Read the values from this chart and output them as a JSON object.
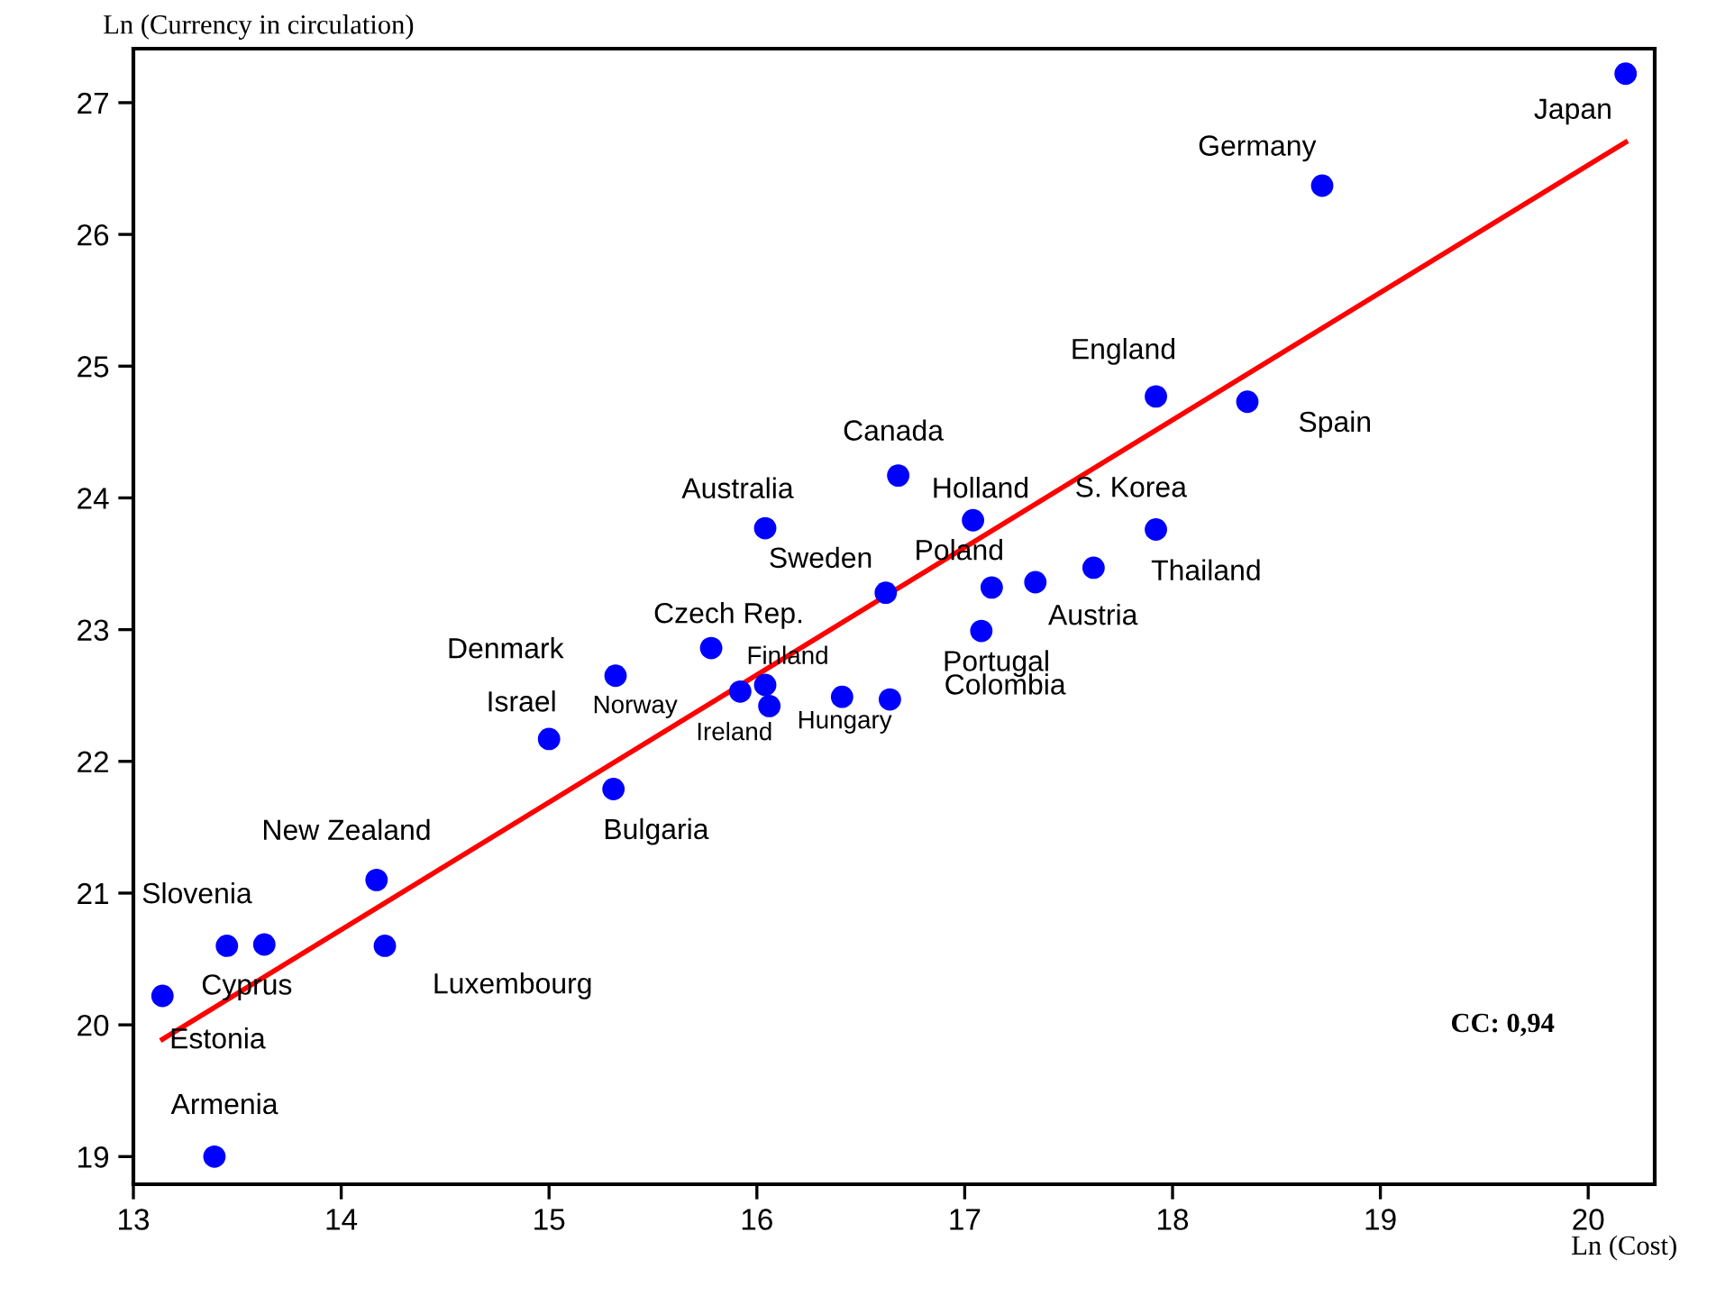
{
  "chart_data": {
    "type": "scatter",
    "xlabel": "Ln (Cost)",
    "ylabel": "Ln (Currency in circulation)",
    "xlim": [
      13,
      20.32
    ],
    "ylim": [
      18.79,
      27.41
    ],
    "xticks": [
      13,
      14,
      15,
      16,
      17,
      18,
      19,
      20
    ],
    "yticks": [
      19,
      20,
      21,
      22,
      23,
      24,
      25,
      26,
      27
    ],
    "grid": false,
    "series": [
      {
        "color": "#0000ff",
        "marker": "circle",
        "x": [
          20.18,
          18.72,
          17.92,
          18.36,
          17.92,
          17.62,
          17.34,
          17.13,
          17.04,
          16.68,
          16.04,
          16.62,
          17.08,
          15.78,
          15.32,
          16.04,
          15.92,
          16.06,
          16.41,
          16.64,
          15.0,
          15.31,
          14.17,
          13.45,
          13.63,
          14.21,
          13.14,
          13.39
        ],
        "values": [
          27.22,
          26.37,
          24.77,
          24.73,
          23.76,
          23.47,
          23.36,
          23.32,
          23.83,
          24.17,
          23.77,
          23.28,
          22.99,
          22.86,
          22.65,
          22.58,
          22.53,
          22.42,
          22.49,
          22.47,
          22.17,
          21.79,
          21.1,
          20.6,
          20.61,
          20.6,
          20.22,
          19.0
        ]
      },
      {
        "type": "line",
        "color": "#ff0000",
        "line_style": "solid",
        "marker": "none",
        "x": [
          13.14,
          20.18
        ],
        "values": [
          19.89,
          26.7
        ]
      }
    ],
    "annotations": [
      {
        "text": "Japan",
        "x": 20.18,
        "y": 27.22
      },
      {
        "text": "Germany",
        "x": 18.72,
        "y": 26.37
      },
      {
        "text": "England",
        "x": 17.92,
        "y": 24.77
      },
      {
        "text": "Spain",
        "x": 18.36,
        "y": 24.73
      },
      {
        "text": "S. Korea",
        "x": 17.92,
        "y": 23.76
      },
      {
        "text": "Thailand",
        "x": 17.62,
        "y": 23.47
      },
      {
        "text": "Austria",
        "x": 17.34,
        "y": 23.36
      },
      {
        "text": "Poland",
        "x": 17.13,
        "y": 23.32
      },
      {
        "text": "Holland",
        "x": 17.04,
        "y": 23.83
      },
      {
        "text": "Canada",
        "x": 16.68,
        "y": 24.17
      },
      {
        "text": "Australia",
        "x": 16.04,
        "y": 23.77
      },
      {
        "text": "Sweden",
        "x": 16.62,
        "y": 23.28
      },
      {
        "text": "Portugal",
        "x": 17.08,
        "y": 22.99
      },
      {
        "text": "Czech Rep.",
        "x": 15.78,
        "y": 22.86
      },
      {
        "text": "Denmark",
        "x": 15.32,
        "y": 22.65
      },
      {
        "text": "Finland",
        "x": 16.04,
        "y": 22.58
      },
      {
        "text": "Norway",
        "x": 15.92,
        "y": 22.53
      },
      {
        "text": "Ireland",
        "x": 16.06,
        "y": 22.42
      },
      {
        "text": "Hungary",
        "x": 16.41,
        "y": 22.49
      },
      {
        "text": "Colombia",
        "x": 16.64,
        "y": 22.47
      },
      {
        "text": "Israel",
        "x": 15.0,
        "y": 22.17
      },
      {
        "text": "Bulgaria",
        "x": 15.31,
        "y": 21.79
      },
      {
        "text": "New Zealand",
        "x": 14.17,
        "y": 21.1
      },
      {
        "text": "Slovenia",
        "x": 13.45,
        "y": 20.6
      },
      {
        "text": "Cyprus",
        "x": 13.63,
        "y": 20.61
      },
      {
        "text": "Luxembourg",
        "x": 14.21,
        "y": 20.6
      },
      {
        "text": "Estonia",
        "x": 13.14,
        "y": 20.22
      },
      {
        "text": "Armenia",
        "x": 13.39,
        "y": 19.0
      },
      "CC: 0,94"
    ]
  }
}
